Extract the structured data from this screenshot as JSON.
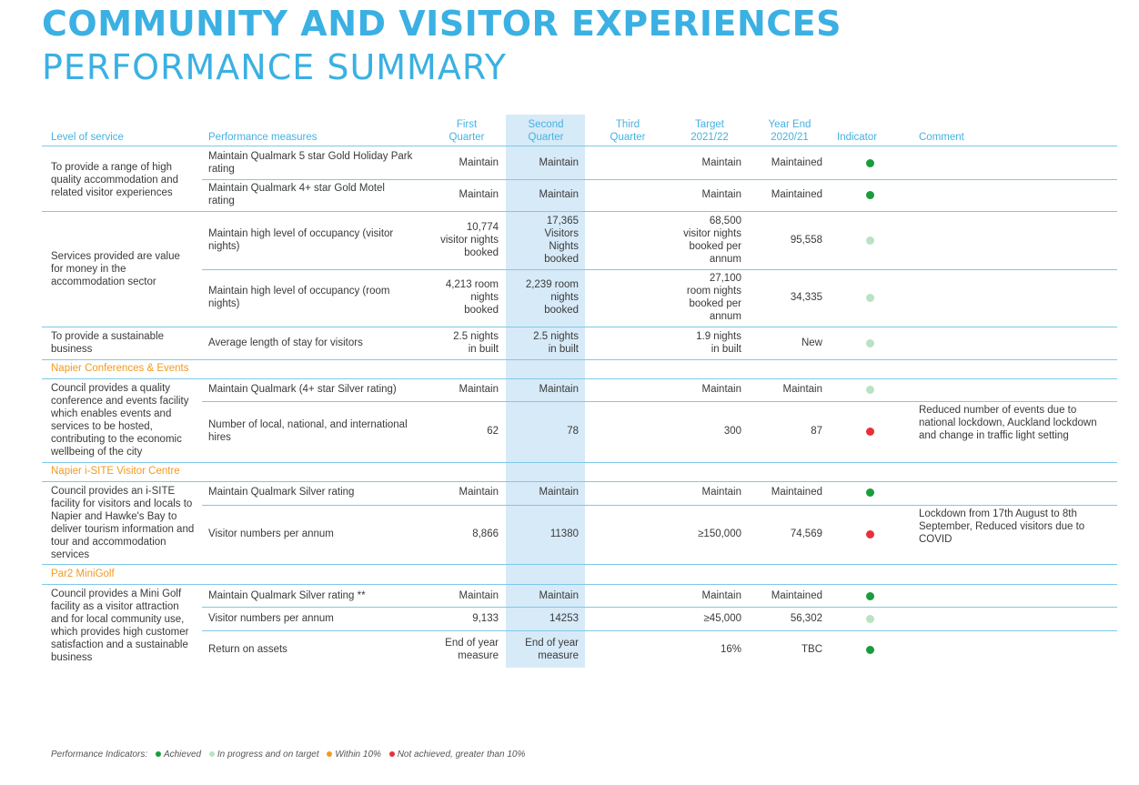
{
  "title": {
    "line1": "COMMUNITY AND VISITOR EXPERIENCES",
    "line2": "PERFORMANCE SUMMARY"
  },
  "colors": {
    "title": "#3bb0e3",
    "header": "#45b2e0",
    "section": "#f39a1e",
    "achieved": "#1a9b3c",
    "in_progress": "#b9e3c3",
    "within_10": "#f39a1e",
    "not_achieved": "#e8303a",
    "second_quarter_band": "#d7eaf8"
  },
  "headers": {
    "level_of_service": "Level of service",
    "performance_measures": "Performance measures",
    "first_quarter": "First\nQuarter",
    "second_quarter": "Second\nQuarter",
    "third_quarter": "Third\nQuarter",
    "target": "Target\n2021/22",
    "year_end": "Year End\n2020/21",
    "indicator": "Indicator",
    "comment": "Comment"
  },
  "sections": {
    "conferences": "Napier Conferences & Events",
    "isite": "Napier i-SITE Visitor Centre",
    "minigolf": "Par2 MiniGolf"
  },
  "levels": {
    "l1": "To provide a range of high quality accommodation and related visitor experiences",
    "l2": "Services provided are value for money in the accommodation sector",
    "l3": "To provide a sustainable business",
    "l4": "Council provides a quality conference and events facility which enables events and services to be hosted, contributing to the economic wellbeing of the city",
    "l5": "Council provides an i-SITE facility for visitors and locals to Napier and Hawke's Bay to deliver tourism information and tour and accommodation services",
    "l6": "Council provides a Mini Golf facility as a visitor attraction and for local community use, which provides high customer satisfaction and a sustainable business"
  },
  "rows": [
    {
      "measure": "Maintain Qualmark 5 star Gold Holiday Park rating",
      "q1": "Maintain",
      "q2": "Maintain",
      "q3": "",
      "target": "Maintain",
      "year_end": "Maintained",
      "indicator": "achieved",
      "comment": ""
    },
    {
      "measure": "Maintain Qualmark 4+ star Gold Motel rating",
      "q1": "Maintain",
      "q2": "Maintain",
      "q3": "",
      "target": "Maintain",
      "year_end": "Maintained",
      "indicator": "achieved",
      "comment": ""
    },
    {
      "measure": "Maintain high level of occupancy (visitor nights)",
      "q1": "10,774\nvisitor nights\nbooked",
      "q2": "17,365\nVisitors\nNights\nbooked",
      "q3": "",
      "target": "68,500\nvisitor nights\nbooked per\nannum",
      "year_end": "95,558",
      "indicator": "in-progress",
      "comment": ""
    },
    {
      "measure": "Maintain high level of occupancy (room nights)",
      "q1": "4,213 room\nnights\nbooked",
      "q2": "2,239 room\nnights\nbooked",
      "q3": "",
      "target": "27,100\nroom nights\nbooked per\nannum",
      "year_end": "34,335",
      "indicator": "in-progress",
      "comment": ""
    },
    {
      "measure": "Average length of stay for visitors",
      "q1": "2.5 nights\nin built",
      "q2": "2.5 nights\nin built",
      "q3": "",
      "target": "1.9 nights\nin built",
      "year_end": "New",
      "indicator": "in-progress",
      "comment": ""
    },
    {
      "measure": "Maintain Qualmark (4+ star Silver rating)",
      "q1": "Maintain",
      "q2": "Maintain",
      "q3": "",
      "target": "Maintain",
      "year_end": "Maintain",
      "indicator": "in-progress",
      "comment": ""
    },
    {
      "measure": "Number of local, national, and international hires",
      "q1": "62",
      "q2": "78",
      "q3": "",
      "target": "300",
      "year_end": "87",
      "indicator": "not-achieved",
      "comment": "Reduced number of events due to national lockdown, Auckland lockdown and change in traffic light setting"
    },
    {
      "measure": "Maintain Qualmark Silver rating",
      "q1": "Maintain",
      "q2": "Maintain",
      "q3": "",
      "target": "Maintain",
      "year_end": "Maintained",
      "indicator": "achieved",
      "comment": ""
    },
    {
      "measure": "Visitor numbers per annum",
      "q1": "8,866",
      "q2": "11380",
      "q3": "",
      "target": "≥150,000",
      "year_end": "74,569",
      "indicator": "not-achieved",
      "comment": "Lockdown from 17th August to 8th September, Reduced visitors due to COVID"
    },
    {
      "measure": "Maintain Qualmark Silver rating **",
      "q1": "Maintain",
      "q2": "Maintain",
      "q3": "",
      "target": "Maintain",
      "year_end": "Maintained",
      "indicator": "achieved",
      "comment": ""
    },
    {
      "measure": "Visitor numbers per annum",
      "q1": "9,133",
      "q2": "14253",
      "q3": "",
      "target": "≥45,000",
      "year_end": "56,302",
      "indicator": "in-progress",
      "comment": ""
    },
    {
      "measure": "Return on assets",
      "q1": "End of year\nmeasure",
      "q2": "End of year\nmeasure",
      "q3": "",
      "target": "16%",
      "year_end": "TBC",
      "indicator": "achieved",
      "comment": ""
    }
  ],
  "legend": {
    "label": "Performance Indicators:",
    "achieved": "Achieved",
    "in_progress": "In progress and on target",
    "within": "Within 10%",
    "not_achieved": "Not achieved, greater than 10%"
  }
}
